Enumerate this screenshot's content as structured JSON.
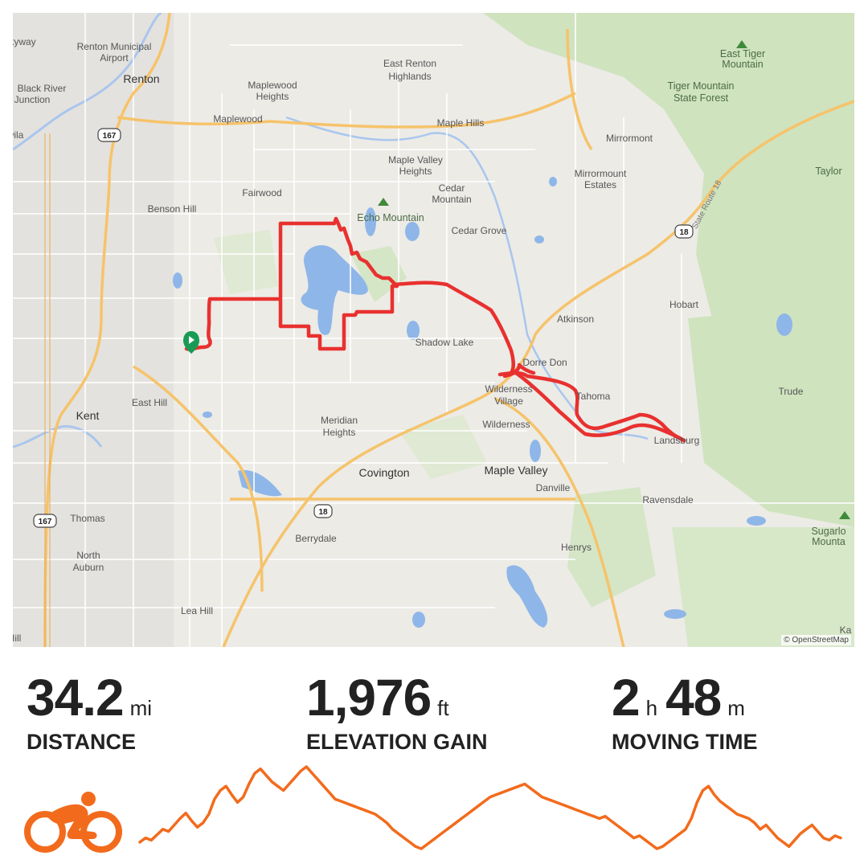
{
  "map": {
    "attribution": "© OpenStreetMap",
    "route_color": "#e8312f",
    "start_marker_color": "#1a9b55",
    "places": {
      "skyway": "kyway",
      "renton_airport_1": "Renton Municipal",
      "renton_airport_2": "Airport",
      "renton": "Renton",
      "black_river_1": "Black River",
      "black_river_2": "Junction",
      "tukwila": "kwila",
      "maplewood_heights_1": "Maplewood",
      "maplewood_heights_2": "Heights",
      "maplewood": "Maplewood",
      "east_renton_1": "East Renton",
      "east_renton_2": "Highlands",
      "maple_hills": "Maple Hills",
      "maple_valley_heights_1": "Maple Valley",
      "maple_valley_heights_2": "Heights",
      "fairwood": "Fairwood",
      "cedar_mountain_1": "Cedar",
      "cedar_mountain_2": "Mountain",
      "echo_mountain": "Echo Mountain",
      "benson_hill": "Benson Hill",
      "cedar_grove": "Cedar Grove",
      "mirrormont": "Mirrormont",
      "mirrormount_estates_1": "Mirrormount",
      "mirrormount_estates_2": "Estates",
      "east_tiger_1": "East Tiger",
      "east_tiger_2": "Mountain",
      "tiger_forest_1": "Tiger Mountain",
      "tiger_forest_2": "State Forest",
      "state_route_18": "State Route 18",
      "taylor": "Taylor",
      "hobart": "Hobart",
      "atkinson": "Atkinson",
      "shadow_lake": "Shadow Lake",
      "dorre_don": "Dorre Don",
      "wilderness_village_1": "Wilderness",
      "wilderness_village_2": "Village",
      "wilderness": "Wilderness",
      "tahoma": "Tahoma",
      "landsburg": "Landsburg",
      "trude": "Trude",
      "east_hill": "East Hill",
      "kent": "Kent",
      "meridian_heights_1": "Meridian",
      "meridian_heights_2": "Heights",
      "covington": "Covington",
      "maple_valley": "Maple Valley",
      "danville": "Danville",
      "ravensdale": "Ravensdale",
      "sugarloaf_1": "Sugarlo",
      "sugarloaf_2": "Mounta",
      "thomas": "Thomas",
      "north_auburn_1": "North",
      "north_auburn_2": "Auburn",
      "berrydale": "Berrydale",
      "henrys": "Henrys",
      "lea_hill": "Lea Hill",
      "hill_sw": "Hill",
      "ka": "Ka"
    },
    "shields": {
      "r167_north": "167",
      "r167_south": "167",
      "r18_east": "18",
      "r18_south": "18"
    }
  },
  "stats": {
    "distance": {
      "value": "34.2",
      "unit": "mi",
      "label": "DISTANCE"
    },
    "elevation": {
      "value": "1,976",
      "unit": "ft",
      "label": "ELEVATION GAIN"
    },
    "moving_time": {
      "hours": "2",
      "hours_unit": "h",
      "minutes": "48",
      "minutes_unit": "m",
      "label": "MOVING TIME"
    }
  },
  "sport": {
    "icon": "cyclist-icon",
    "color": "#f26b1d"
  },
  "elevation_profile": {
    "color": "#f26b1d",
    "values": [
      18,
      22,
      20,
      25,
      30,
      28,
      34,
      40,
      45,
      38,
      32,
      36,
      44,
      58,
      66,
      70,
      62,
      55,
      60,
      72,
      82,
      86,
      80,
      74,
      70,
      66,
      72,
      78,
      84,
      88,
      82,
      76,
      70,
      64,
      58,
      56,
      54,
      52,
      50,
      48,
      46,
      44,
      40,
      36,
      30,
      26,
      22,
      18,
      14,
      12,
      16,
      20,
      24,
      28,
      32,
      36,
      40,
      44,
      48,
      52,
      56,
      60,
      62,
      64,
      66,
      68,
      70,
      72,
      68,
      64,
      60,
      58,
      56,
      54,
      52,
      50,
      48,
      46,
      44,
      42,
      40,
      42,
      38,
      34,
      30,
      26,
      22,
      24,
      20,
      16,
      12,
      14,
      18,
      22,
      26,
      30,
      40,
      55,
      66,
      70,
      62,
      56,
      52,
      48,
      44,
      42,
      40,
      36,
      30,
      34,
      28,
      22,
      18,
      14,
      20,
      26,
      30,
      34,
      28,
      22,
      20,
      24,
      22
    ]
  }
}
